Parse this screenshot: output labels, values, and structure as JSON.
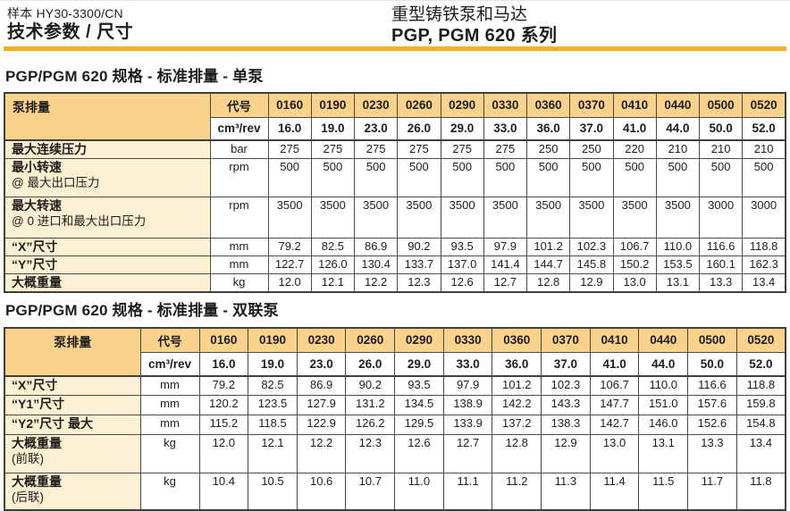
{
  "colors": {
    "accent": "#F3B01D",
    "header-fill": "#FBD28B",
    "label-fill": "#FCEFD2"
  },
  "header": {
    "doc_ref": "样本 HY30-3300/CN",
    "page_title": "技术参数 / 尺寸",
    "product_line": "重型铸铁泵和马达",
    "series": "PGP, PGM 620 系列"
  },
  "table1": {
    "title": "PGP/PGM 620 规格 - 标准排量 - 单泵",
    "corner_label": "泵排量",
    "code_label": "代号",
    "unit_header": "cm³/rev",
    "codes": [
      "0160",
      "0190",
      "0230",
      "0260",
      "0290",
      "0330",
      "0360",
      "0370",
      "0410",
      "0440",
      "0500",
      "0520"
    ],
    "displacements": [
      "16.0",
      "19.0",
      "23.0",
      "26.0",
      "29.0",
      "33.0",
      "36.0",
      "37.0",
      "41.0",
      "44.0",
      "50.0",
      "52.0"
    ],
    "rows": [
      {
        "label": "最大连续压力",
        "sublabel": "",
        "unit": "bar",
        "values": [
          "275",
          "275",
          "275",
          "275",
          "275",
          "275",
          "250",
          "250",
          "220",
          "210",
          "210",
          "210"
        ]
      },
      {
        "label": "最小转速",
        "sublabel": "@ 最大出口压力",
        "unit": "rpm",
        "values": [
          "500",
          "500",
          "500",
          "500",
          "500",
          "500",
          "500",
          "500",
          "500",
          "500",
          "500",
          "500"
        ]
      },
      {
        "label": "最大转速",
        "sublabel": "@ 0 进口和最大出口压力",
        "unit": "rpm",
        "values": [
          "3500",
          "3500",
          "3500",
          "3500",
          "3500",
          "3500",
          "3500",
          "3500",
          "3500",
          "3500",
          "3000",
          "3000"
        ]
      },
      {
        "label": "“X”尺寸",
        "sublabel": "",
        "unit": "mm",
        "values": [
          "79.2",
          "82.5",
          "86.9",
          "90.2",
          "93.5",
          "97.9",
          "101.2",
          "102.3",
          "106.7",
          "110.0",
          "116.6",
          "118.8"
        ]
      },
      {
        "label": "“Y”尺寸",
        "sublabel": "",
        "unit": "mm",
        "values": [
          "122.7",
          "126.0",
          "130.4",
          "133.7",
          "137.0",
          "141.4",
          "144.7",
          "145.8",
          "150.2",
          "153.5",
          "160.1",
          "162.3"
        ]
      },
      {
        "label": "大概重量",
        "sublabel": "",
        "unit": "kg",
        "values": [
          "12.0",
          "12.1",
          "12.2",
          "12.3",
          "12.6",
          "12.7",
          "12.8",
          "12.9",
          "13.0",
          "13.1",
          "13.3",
          "13.4"
        ]
      }
    ]
  },
  "table2": {
    "title": "PGP/PGM 620 规格 - 标准排量 - 双联泵",
    "corner_label": "泵排量",
    "code_label": "代号",
    "unit_header": "cm³/rev",
    "codes": [
      "0160",
      "0190",
      "0230",
      "0260",
      "0290",
      "0330",
      "0360",
      "0370",
      "0410",
      "0440",
      "0500",
      "0520"
    ],
    "displacements": [
      "16.0",
      "19.0",
      "23.0",
      "26.0",
      "29.0",
      "33.0",
      "36.0",
      "37.0",
      "41.0",
      "44.0",
      "50.0",
      "52.0"
    ],
    "rows": [
      {
        "label": "“X”尺寸",
        "sublabel": "",
        "unit": "mm",
        "values": [
          "79.2",
          "82.5",
          "86.9",
          "90.2",
          "93.5",
          "97.9",
          "101.2",
          "102.3",
          "106.7",
          "110.0",
          "116.6",
          "118.8"
        ]
      },
      {
        "label": "“Y1”尺寸",
        "sublabel": "",
        "unit": "mm",
        "values": [
          "120.2",
          "123.5",
          "127.9",
          "131.2",
          "134.5",
          "138.9",
          "142.2",
          "143.3",
          "147.7",
          "151.0",
          "157.6",
          "159.8"
        ]
      },
      {
        "label": "“Y2”尺寸 最大",
        "sublabel": "",
        "unit": "mm",
        "values": [
          "115.2",
          "118.5",
          "122.9",
          "126.2",
          "129.5",
          "133.9",
          "137.2",
          "138.3",
          "142.7",
          "146.0",
          "152.6",
          "154.8"
        ]
      },
      {
        "label": "大概重量",
        "sublabel": "(前联)",
        "unit": "kg",
        "values": [
          "12.0",
          "12.1",
          "12.2",
          "12.3",
          "12.6",
          "12.7",
          "12.8",
          "12.9",
          "13.0",
          "13.1",
          "13.3",
          "13.4"
        ]
      },
      {
        "label": "大概重量",
        "sublabel": "(后联)",
        "unit": "kg",
        "values": [
          "10.4",
          "10.5",
          "10.6",
          "10.7",
          "11.0",
          "11.1",
          "11.2",
          "11.3",
          "11.4",
          "11.5",
          "11.7",
          "11.8"
        ]
      }
    ]
  }
}
